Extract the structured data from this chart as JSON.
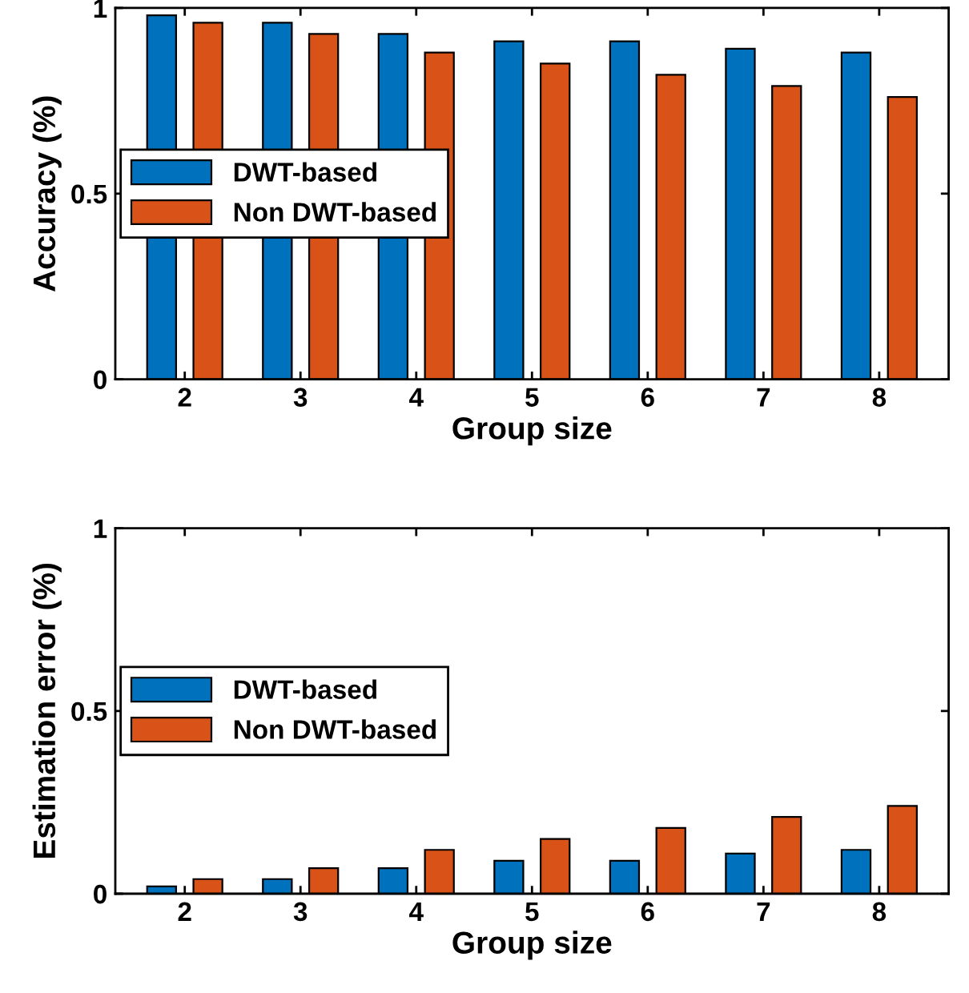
{
  "chart_data": [
    {
      "type": "bar",
      "categories": [
        "2",
        "3",
        "4",
        "5",
        "6",
        "7",
        "8"
      ],
      "xlabel": "Group size",
      "ylabel": "Accuracy (%)",
      "ylim": [
        0,
        1
      ],
      "yticks": [
        0,
        0.5,
        1
      ],
      "legend": "left",
      "grid": false,
      "series": [
        {
          "name": "DWT-based",
          "color": "#0072bd",
          "values": [
            0.98,
            0.96,
            0.93,
            0.91,
            0.91,
            0.89,
            0.88
          ]
        },
        {
          "name": "Non DWT-based",
          "color": "#d95319",
          "values": [
            0.96,
            0.93,
            0.88,
            0.85,
            0.82,
            0.79,
            0.76
          ]
        }
      ]
    },
    {
      "type": "bar",
      "categories": [
        "2",
        "3",
        "4",
        "5",
        "6",
        "7",
        "8"
      ],
      "xlabel": "Group size",
      "ylabel": "Estimation error (%)",
      "ylim": [
        0,
        1
      ],
      "yticks": [
        0,
        0.5,
        1
      ],
      "legend": "left",
      "grid": false,
      "series": [
        {
          "name": "DWT-based",
          "color": "#0072bd",
          "values": [
            0.02,
            0.04,
            0.07,
            0.09,
            0.09,
            0.11,
            0.12
          ]
        },
        {
          "name": "Non DWT-based",
          "color": "#d95319",
          "values": [
            0.04,
            0.07,
            0.12,
            0.15,
            0.18,
            0.21,
            0.24
          ]
        }
      ]
    }
  ]
}
